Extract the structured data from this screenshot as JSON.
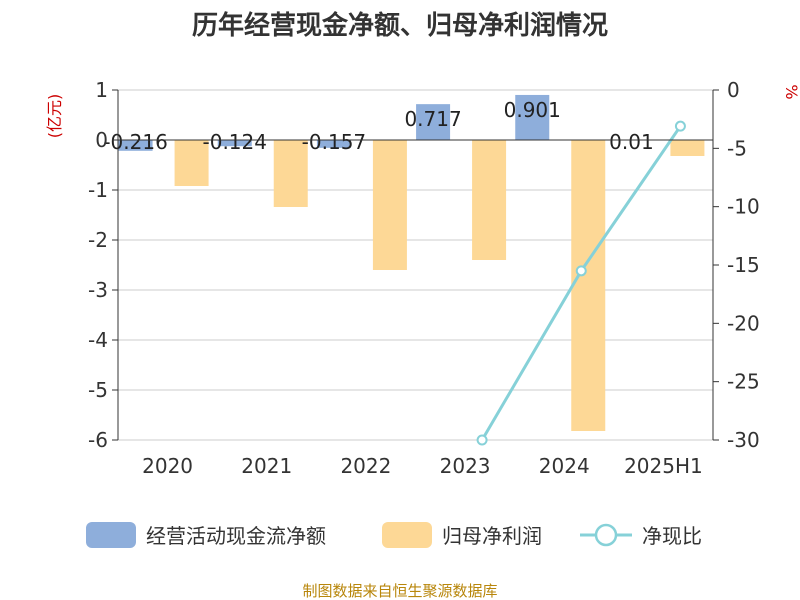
{
  "chart_data": {
    "type": "bar",
    "title": "历年经营现金净额、归母净利润情况",
    "categories": [
      "2020",
      "2021",
      "2022",
      "2023",
      "2024",
      "2025H1"
    ],
    "y_left_label": "(亿元)",
    "y_right_label": "%",
    "y_left_range": [
      -6,
      1
    ],
    "y_right_range": [
      -30,
      0
    ],
    "y_left_ticks": [
      "1",
      "0",
      "-1",
      "-2",
      "-3",
      "-4",
      "-5",
      "-6"
    ],
    "y_right_ticks": [
      "0",
      "-5",
      "-10",
      "-15",
      "-20",
      "-25",
      "-30"
    ],
    "grid": true,
    "series": [
      {
        "name": "经营活动现金流净额",
        "kind": "bar",
        "axis": "left",
        "color": "#8eaedb",
        "values": [
          -0.216,
          -0.124,
          -0.157,
          0.717,
          0.901,
          0.01
        ],
        "labels": [
          "-0.216",
          "-0.124",
          "-0.157",
          "0.717",
          "0.901",
          "0.01"
        ]
      },
      {
        "name": "归母净利润",
        "kind": "bar",
        "axis": "left",
        "color": "#fdd896",
        "values": [
          -0.92,
          -1.34,
          -2.6,
          -2.4,
          -5.82,
          -0.32
        ]
      },
      {
        "name": "净现比",
        "kind": "line",
        "axis": "right",
        "color": "#86d1d8",
        "values": [
          null,
          null,
          null,
          -30.0,
          -15.5,
          -3.1
        ]
      }
    ],
    "legend_position": "bottom"
  },
  "source": "制图数据来自恒生聚源数据库"
}
